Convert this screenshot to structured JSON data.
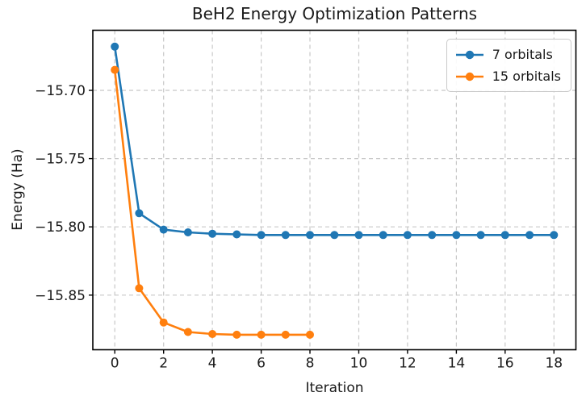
{
  "chart_data": {
    "type": "line",
    "title": "BeH2 Energy Optimization Patterns",
    "xlabel": "Iteration",
    "ylabel": "Energy (Ha)",
    "xlim": [
      -0.9,
      18.9
    ],
    "ylim": [
      -15.89,
      -15.656
    ],
    "x_ticks": [
      0,
      2,
      4,
      6,
      8,
      10,
      12,
      14,
      16,
      18
    ],
    "y_ticks": [
      -15.7,
      -15.75,
      -15.8,
      -15.85
    ],
    "grid": true,
    "grid_style": "dashed",
    "grid_color": "#c8c8c8",
    "axis_color": "#000000",
    "background": "#ffffff",
    "legend_position": "upper right",
    "series": [
      {
        "name": "7 orbitals",
        "color": "#1f77b4",
        "marker": "circle",
        "x": [
          0,
          1,
          2,
          3,
          4,
          5,
          6,
          7,
          8,
          9,
          10,
          11,
          12,
          13,
          14,
          15,
          16,
          17,
          18
        ],
        "y": [
          -15.668,
          -15.79,
          -15.802,
          -15.804,
          -15.805,
          -15.8055,
          -15.806,
          -15.806,
          -15.806,
          -15.806,
          -15.806,
          -15.806,
          -15.806,
          -15.806,
          -15.806,
          -15.806,
          -15.806,
          -15.806,
          -15.806
        ]
      },
      {
        "name": "15 orbitals",
        "color": "#ff7f0e",
        "marker": "circle",
        "x": [
          0,
          1,
          2,
          3,
          4,
          5,
          6,
          7,
          8
        ],
        "y": [
          -15.685,
          -15.845,
          -15.87,
          -15.877,
          -15.8785,
          -15.879,
          -15.879,
          -15.879,
          -15.879
        ]
      }
    ]
  }
}
